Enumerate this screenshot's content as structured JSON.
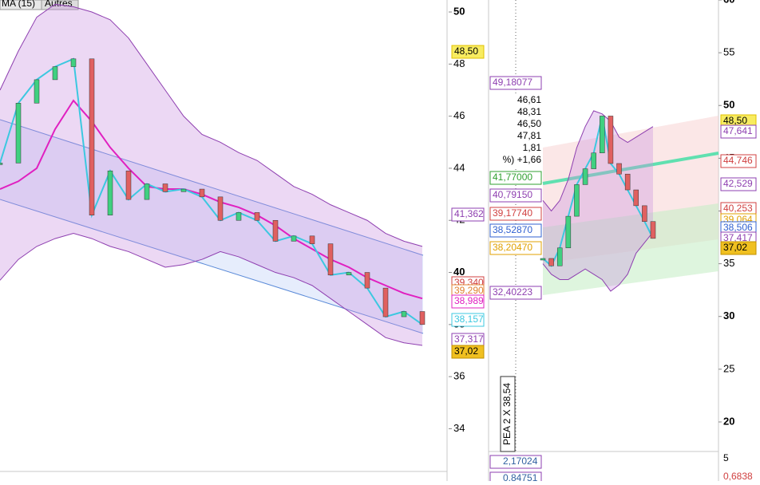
{
  "toolbar": {
    "indicator": "MA (15)",
    "button": "Autres"
  },
  "left_panel": {
    "ylim": [
      32.36,
      50.46
    ],
    "yticks": [
      34,
      36,
      38,
      40,
      42,
      44,
      46,
      48,
      50
    ],
    "upper_band": {
      "color": "#8e3fb0",
      "values": [
        47.0,
        48.5,
        49.8,
        50.3,
        50.2,
        50.0,
        49.7,
        49.0,
        48.0,
        47.0,
        46.0,
        45.3,
        45.0,
        44.6,
        44.3,
        43.8,
        43.3,
        43.0,
        42.6,
        42.3,
        42.0,
        41.5,
        41.2,
        41.0
      ]
    },
    "lower_band": {
      "color": "#8e3fb0",
      "values": [
        39.7,
        40.5,
        41.0,
        41.3,
        41.5,
        41.3,
        41.0,
        40.8,
        40.5,
        40.2,
        40.3,
        40.5,
        40.8,
        40.6,
        40.3,
        40.0,
        39.8,
        39.5,
        39.0,
        38.5,
        38.0,
        37.5,
        37.3,
        37.2
      ]
    },
    "ma": {
      "color": "#e020c0",
      "values": [
        43.2,
        43.5,
        44.0,
        45.5,
        46.6,
        45.8,
        44.8,
        44.0,
        43.3,
        43.2,
        43.2,
        43.0,
        42.7,
        42.5,
        42.2,
        41.8,
        41.3,
        40.9,
        40.5,
        40.2,
        39.8,
        39.5,
        39.2,
        39.0
      ]
    },
    "close": {
      "color": "#3cc8e0",
      "values": [
        44.2,
        46.5,
        47.4,
        47.9,
        48.2,
        42.2,
        43.9,
        42.8,
        43.4,
        43.1,
        43.2,
        42.9,
        42.0,
        42.3,
        42.0,
        41.2,
        41.4,
        41.1,
        39.9,
        40.0,
        39.4,
        38.3,
        38.5,
        38.0
      ]
    },
    "price_tags": [
      {
        "value": 48.5,
        "label": "48,50",
        "color": "#e0c000",
        "bg": "#f8ec60"
      },
      {
        "value": 41.362,
        "label": "41,362",
        "color": "#8e3fb0",
        "bg": "#ffffff"
      },
      {
        "value": 39.34,
        "label": "39,340",
        "color": "#d04040",
        "bg": "#ffffff"
      },
      {
        "value": 39.29,
        "label": "39,290",
        "color": "#e08030",
        "bg": "#ffffff"
      },
      {
        "value": 38.989,
        "label": "38,989",
        "color": "#e020c0",
        "bg": "#ffffff"
      },
      {
        "value": 38.157,
        "label": "38,157",
        "color": "#3cc8e0",
        "bg": "#ffffff"
      },
      {
        "value": 37.317,
        "label": "37,317",
        "color": "#8e3fb0",
        "bg": "#ffffff"
      },
      {
        "value": 37.02,
        "label": "37,02",
        "color": "#c09000",
        "bg": "#f0c020"
      }
    ]
  },
  "right_panel": {
    "ylim": [
      17.2,
      60
    ],
    "yticks": [
      20,
      25,
      30,
      35,
      40,
      45,
      50,
      55,
      60
    ],
    "upper_band": {
      "color": "#8e3fb0",
      "values": [
        41,
        40,
        41,
        43,
        46,
        48,
        49.5,
        49.2,
        48.5,
        47,
        46.5,
        47,
        47.5,
        48
      ]
    },
    "lower_band": {
      "color": "#8e3fb0",
      "values": [
        35,
        34,
        33.5,
        33.5,
        34,
        34.5,
        34,
        33.5,
        32.4,
        33,
        34,
        36,
        37,
        38
      ]
    },
    "close": {
      "color": "#3cc8e0",
      "values": [
        35.5,
        34.8,
        36.5,
        39.5,
        42.5,
        44.0,
        45.5,
        49.0,
        44.5,
        43.5,
        42.0,
        40.5,
        39.0,
        37.4
      ]
    },
    "info_box": [
      "46,61",
      "48,31",
      "46,50",
      "47,81",
      "1,81",
      "%) +1,66"
    ],
    "left_tags": [
      {
        "value": 49.18077,
        "label": "49,18077",
        "color": "#8e3fb0"
      },
      {
        "value": 41.77,
        "label": "41,77000",
        "color": "#30a030"
      },
      {
        "value": 40.7915,
        "label": "40,79150",
        "color": "#8e3fb0"
      },
      {
        "value": 39.1774,
        "label": "39,17740",
        "color": "#d04040"
      },
      {
        "value": 38.5287,
        "label": "38,52870",
        "color": "#3060d0"
      },
      {
        "value": 38.2047,
        "label": "38,20470",
        "color": "#e0a000"
      },
      {
        "value": 32.40223,
        "label": "32,40223",
        "color": "#8e3fb0"
      }
    ],
    "right_tags": [
      {
        "value": 48.5,
        "label": "48,50",
        "color": "#e0c000",
        "bg": "#f8ec60"
      },
      {
        "value": 47.641,
        "label": "47,641",
        "color": "#8e3fb0",
        "bg": "#ffffff"
      },
      {
        "value": 44.746,
        "label": "44,746",
        "color": "#d04040",
        "bg": "#ffffff"
      },
      {
        "value": 42.529,
        "label": "42,529",
        "color": "#8e3fb0",
        "bg": "#ffffff"
      },
      {
        "value": 40.253,
        "label": "40,253",
        "color": "#d04040",
        "bg": "#ffffff"
      },
      {
        "value": 39.064,
        "label": "39,064",
        "color": "#e0a000",
        "bg": "#ffffff"
      },
      {
        "value": 38.506,
        "label": "38,506",
        "color": "#3060d0",
        "bg": "#ffffff"
      },
      {
        "value": 37.417,
        "label": "37,417",
        "color": "#8e3fb0",
        "bg": "#ffffff"
      },
      {
        "value": 37.02,
        "label": "37,02",
        "color": "#c09000",
        "bg": "#f0c020"
      }
    ],
    "vertical_label": "PEA 2 X 38,54",
    "oscillator": {
      "left_labels": [
        "2,17024",
        "0,84751"
      ],
      "right_labels": [
        "5",
        "0,6838"
      ]
    }
  }
}
